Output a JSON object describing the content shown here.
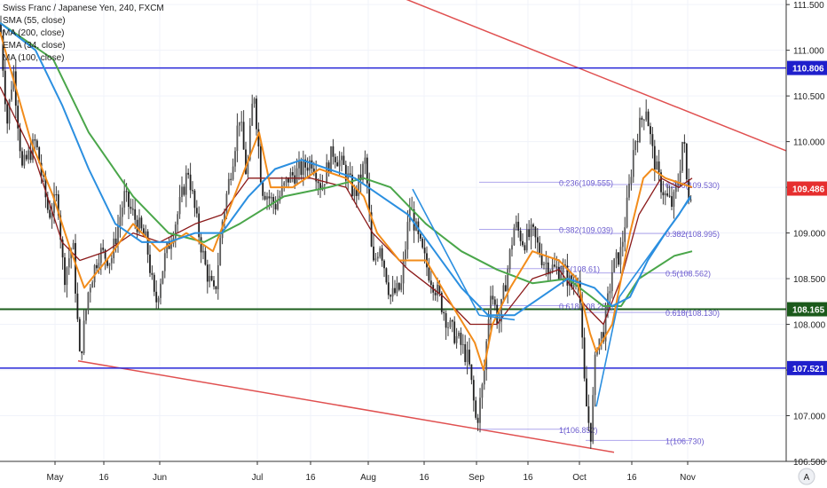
{
  "legend": {
    "title": "Swiss Franc / Japanese Yen, 240, FXCM",
    "ind1": "SMA (55, close)",
    "ind2": "MA (200, close)",
    "ind3": "EMA (34, close)",
    "ind4": "MA (100, close)"
  },
  "colors": {
    "up": "#26a69a",
    "down": "#d4353c",
    "candle": "#3b3b3b",
    "ma55": "#8b1a1a",
    "ma200": "#4aa64a",
    "ema34": "#f28c1b",
    "ma100": "#2b8fe0",
    "channel": "#e05050",
    "blue_level": "#2727d8",
    "green_level": "#1d5e1d",
    "fib": "#9b8fe8",
    "tag_red": "#e62e2e",
    "tag_blue": "#1f1fcc",
    "tag_green": "#1b5a1b"
  },
  "watermark": "A",
  "chart_data": {
    "type": "candlestick",
    "title": "Swiss Franc / Japanese Yen, 240, FXCM",
    "ylim": [
      106.5,
      111.55
    ],
    "y_ticks": [
      "106.500",
      "107.000",
      "107.500",
      "108.000",
      "108.500",
      "109.000",
      "109.500",
      "110.000",
      "110.500",
      "111.000",
      "111.500"
    ],
    "x_ticks": [
      "May",
      "16",
      "Jun",
      "Jul",
      "16",
      "Aug",
      "16",
      "Sep",
      "16",
      "Oct",
      "16",
      "Nov"
    ],
    "path": [
      [
        0,
        111.3
      ],
      [
        8,
        110.2
      ],
      [
        15,
        110.8
      ],
      [
        25,
        109.7
      ],
      [
        40,
        110.0
      ],
      [
        55,
        109.2
      ],
      [
        65,
        109.4
      ],
      [
        72,
        108.5
      ],
      [
        82,
        108.9
      ],
      [
        90,
        107.6
      ],
      [
        100,
        108.4
      ],
      [
        112,
        108.8
      ],
      [
        125,
        108.7
      ],
      [
        140,
        109.4
      ],
      [
        155,
        109.1
      ],
      [
        165,
        108.9
      ],
      [
        175,
        108.2
      ],
      [
        185,
        108.7
      ],
      [
        200,
        109.2
      ],
      [
        212,
        109.7
      ],
      [
        222,
        109.1
      ],
      [
        232,
        108.6
      ],
      [
        242,
        108.3
      ],
      [
        250,
        109.1
      ],
      [
        262,
        109.8
      ],
      [
        270,
        110.3
      ],
      [
        278,
        109.6
      ],
      [
        286,
        110.6
      ],
      [
        295,
        109.5
      ],
      [
        310,
        109.3
      ],
      [
        325,
        109.6
      ],
      [
        340,
        109.7
      ],
      [
        352,
        109.8
      ],
      [
        362,
        109.5
      ],
      [
        375,
        109.9
      ],
      [
        388,
        109.7
      ],
      [
        400,
        109.4
      ],
      [
        412,
        109.8
      ],
      [
        420,
        108.6
      ],
      [
        428,
        108.9
      ],
      [
        440,
        108.3
      ],
      [
        452,
        108.4
      ],
      [
        462,
        109.3
      ],
      [
        472,
        108.9
      ],
      [
        482,
        108.6
      ],
      [
        495,
        108.3
      ],
      [
        505,
        108.0
      ],
      [
        518,
        107.8
      ],
      [
        528,
        107.6
      ],
      [
        537,
        106.9
      ],
      [
        545,
        107.4
      ],
      [
        553,
        108.4
      ],
      [
        562,
        108.0
      ],
      [
        572,
        108.6
      ],
      [
        580,
        109.1
      ],
      [
        590,
        108.9
      ],
      [
        600,
        109.0
      ],
      [
        612,
        108.7
      ],
      [
        625,
        108.6
      ],
      [
        635,
        108.6
      ],
      [
        645,
        108.4
      ],
      [
        652,
        108.6
      ],
      [
        658,
        107.4
      ],
      [
        662,
        107.0
      ],
      [
        666,
        106.8
      ],
      [
        672,
        107.8
      ],
      [
        680,
        107.9
      ],
      [
        690,
        108.6
      ],
      [
        700,
        108.8
      ],
      [
        708,
        109.4
      ],
      [
        715,
        110.0
      ],
      [
        722,
        110.2
      ],
      [
        728,
        110.4
      ],
      [
        735,
        109.9
      ],
      [
        742,
        109.6
      ],
      [
        750,
        109.4
      ],
      [
        758,
        109.3
      ],
      [
        765,
        109.6
      ],
      [
        770,
        110.1
      ],
      [
        775,
        109.4
      ],
      [
        780,
        109.5
      ]
    ],
    "overlays": [
      {
        "name": "SMA (55, close)",
        "points": [
          [
            0,
            110.6
          ],
          [
            40,
            109.8
          ],
          [
            70,
            108.9
          ],
          [
            90,
            108.7
          ],
          [
            120,
            108.8
          ],
          [
            150,
            109.0
          ],
          [
            180,
            108.9
          ],
          [
            220,
            109.1
          ],
          [
            250,
            109.2
          ],
          [
            280,
            109.6
          ],
          [
            310,
            109.6
          ],
          [
            350,
            109.6
          ],
          [
            390,
            109.5
          ],
          [
            420,
            109.0
          ],
          [
            460,
            108.6
          ],
          [
            500,
            108.3
          ],
          [
            530,
            108.0
          ],
          [
            560,
            108.0
          ],
          [
            600,
            108.5
          ],
          [
            630,
            108.6
          ],
          [
            660,
            108.2
          ],
          [
            680,
            108.0
          ],
          [
            700,
            108.5
          ],
          [
            720,
            109.2
          ],
          [
            745,
            109.6
          ],
          [
            765,
            109.5
          ],
          [
            780,
            109.6
          ]
        ]
      },
      {
        "name": "MA (200, close)",
        "points": [
          [
            0,
            111.3
          ],
          [
            60,
            110.9
          ],
          [
            100,
            110.1
          ],
          [
            150,
            109.4
          ],
          [
            190,
            109.0
          ],
          [
            230,
            108.9
          ],
          [
            270,
            109.1
          ],
          [
            320,
            109.4
          ],
          [
            370,
            109.5
          ],
          [
            410,
            109.6
          ],
          [
            440,
            109.5
          ],
          [
            480,
            109.1
          ],
          [
            520,
            108.8
          ],
          [
            560,
            108.6
          ],
          [
            600,
            108.45
          ],
          [
            640,
            108.5
          ],
          [
            680,
            108.2
          ],
          [
            700,
            108.2
          ],
          [
            720,
            108.5
          ],
          [
            760,
            108.75
          ],
          [
            780,
            108.8
          ]
        ]
      },
      {
        "name": "EMA (34, close)",
        "points": [
          [
            0,
            111.2
          ],
          [
            35,
            110.0
          ],
          [
            60,
            109.4
          ],
          [
            80,
            108.8
          ],
          [
            95,
            108.4
          ],
          [
            120,
            108.7
          ],
          [
            150,
            109.1
          ],
          [
            180,
            108.8
          ],
          [
            210,
            109.0
          ],
          [
            240,
            108.8
          ],
          [
            260,
            109.3
          ],
          [
            280,
            109.8
          ],
          [
            292,
            110.1
          ],
          [
            305,
            109.5
          ],
          [
            330,
            109.5
          ],
          [
            360,
            109.7
          ],
          [
            390,
            109.6
          ],
          [
            410,
            109.4
          ],
          [
            425,
            109.0
          ],
          [
            450,
            108.7
          ],
          [
            480,
            108.7
          ],
          [
            510,
            108.2
          ],
          [
            535,
            107.8
          ],
          [
            545,
            107.5
          ],
          [
            555,
            108.0
          ],
          [
            575,
            108.4
          ],
          [
            600,
            108.8
          ],
          [
            630,
            108.7
          ],
          [
            650,
            108.5
          ],
          [
            665,
            107.9
          ],
          [
            672,
            107.7
          ],
          [
            690,
            108.0
          ],
          [
            710,
            109.0
          ],
          [
            725,
            109.6
          ],
          [
            735,
            109.7
          ],
          [
            750,
            109.6
          ],
          [
            765,
            109.55
          ],
          [
            780,
            109.5
          ]
        ]
      },
      {
        "name": "MA (100, close)",
        "points": [
          [
            0,
            111.3
          ],
          [
            40,
            111.0
          ],
          [
            70,
            110.4
          ],
          [
            100,
            109.7
          ],
          [
            130,
            109.1
          ],
          [
            160,
            108.9
          ],
          [
            190,
            108.9
          ],
          [
            220,
            109.0
          ],
          [
            250,
            109.0
          ],
          [
            280,
            109.4
          ],
          [
            310,
            109.7
          ],
          [
            340,
            109.8
          ],
          [
            370,
            109.7
          ],
          [
            400,
            109.6
          ],
          [
            430,
            109.4
          ],
          [
            460,
            109.2
          ],
          [
            490,
            108.8
          ],
          [
            520,
            108.4
          ],
          [
            550,
            108.1
          ],
          [
            580,
            108.1
          ],
          [
            610,
            108.3
          ],
          [
            640,
            108.5
          ],
          [
            670,
            108.4
          ],
          [
            690,
            108.2
          ],
          [
            710,
            108.3
          ],
          [
            730,
            108.7
          ],
          [
            750,
            109.0
          ],
          [
            765,
            109.2
          ],
          [
            778,
            109.4
          ]
        ]
      }
    ],
    "channel_lines": [
      {
        "from": [
          408,
          111.75
        ],
        "to": [
          886,
          109.9
        ]
      },
      {
        "from": [
          88,
          107.6
        ],
        "to": [
          692,
          106.6
        ]
      }
    ],
    "levels": [
      {
        "price": 110.806,
        "label": "110.806",
        "kind": "blue"
      },
      {
        "price": 108.165,
        "label": "108.165",
        "kind": "green"
      },
      {
        "price": 107.521,
        "label": "107.521",
        "kind": "blue"
      },
      {
        "price": 109.486,
        "label": "109.486",
        "kind": "red"
      }
    ],
    "trend_segments": [
      {
        "from": [
          465,
          109.48
        ],
        "to": [
          540,
          108.1
        ]
      },
      {
        "from": [
          540,
          108.1
        ],
        "to": [
          580,
          108.05
        ]
      },
      {
        "from": [
          672,
          107.1
        ],
        "to": [
          698,
          108.3
        ]
      },
      {
        "from": [
          698,
          108.3
        ],
        "to": [
          778,
          109.38
        ]
      }
    ],
    "fib_levels": [
      {
        "x1": 540,
        "x2": 640,
        "price": 109.555,
        "label": "0.236(109.555)"
      },
      {
        "x1": 540,
        "x2": 640,
        "price": 109.039,
        "label": "0.382(109.039)"
      },
      {
        "x1": 540,
        "x2": 640,
        "price": 108.61,
        "label": "0.5(108.61)"
      },
      {
        "x1": 540,
        "x2": 640,
        "price": 108.204,
        "label": "0.618(108.204)"
      },
      {
        "x1": 540,
        "x2": 640,
        "price": 106.852,
        "label": "1(106.852)"
      },
      {
        "x1": 660,
        "x2": 778,
        "price": 109.53,
        "label": "0.236(109.530)"
      },
      {
        "x1": 660,
        "x2": 778,
        "price": 108.995,
        "label": "0.382(108.995)"
      },
      {
        "x1": 660,
        "x2": 778,
        "price": 108.562,
        "label": "0.5(108.562)"
      },
      {
        "x1": 660,
        "x2": 778,
        "price": 108.13,
        "label": "0.618(108.130)"
      },
      {
        "x1": 660,
        "x2": 778,
        "price": 106.73,
        "label": "1(106.730)"
      }
    ]
  }
}
